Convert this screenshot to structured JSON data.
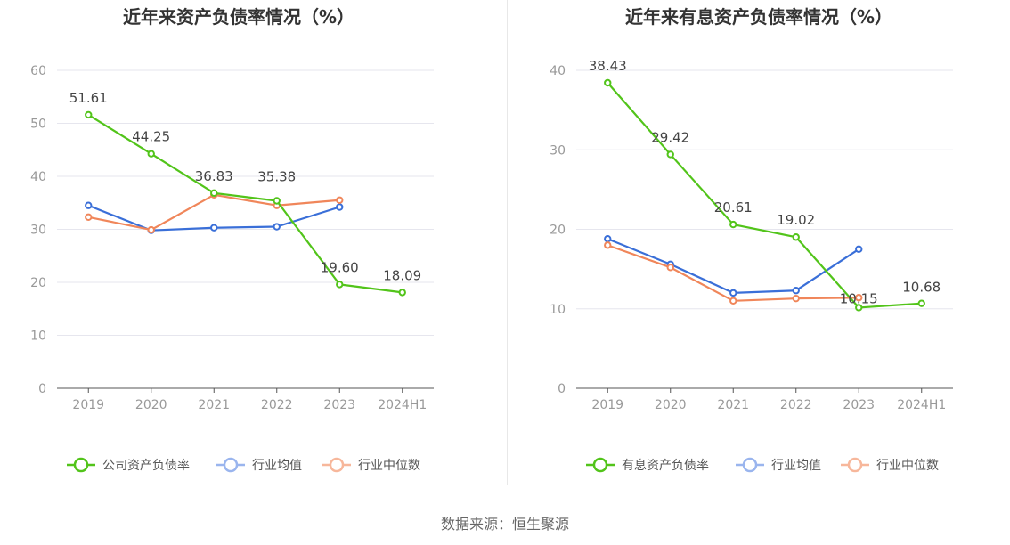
{
  "source_label": "数据来源：恒生聚源",
  "chart_data": [
    {
      "type": "line",
      "title": "近年来资产负债率情况（%）",
      "categories": [
        "2019",
        "2020",
        "2021",
        "2022",
        "2023",
        "2024H1"
      ],
      "ylim": [
        0,
        60
      ],
      "yticks": [
        0,
        10,
        20,
        30,
        40,
        50,
        60
      ],
      "grid": true,
      "legend_position": "bottom",
      "series": [
        {
          "name": "公司资产负债率",
          "color": "#52c41a",
          "values": [
            51.61,
            44.25,
            36.83,
            35.38,
            19.6,
            18.09
          ],
          "labels": [
            "51.61",
            "44.25",
            "36.83",
            "35.38",
            "19.60",
            "18.09"
          ]
        },
        {
          "name": "行业均值",
          "color": "#3a6fd8",
          "values": [
            34.5,
            29.8,
            30.3,
            30.5,
            34.2,
            null
          ]
        },
        {
          "name": "行业中位数",
          "color": "#f0865a",
          "values": [
            32.3,
            29.9,
            36.5,
            34.5,
            35.5,
            null
          ]
        }
      ]
    },
    {
      "type": "line",
      "title": "近年来有息资产负债率情况（%）",
      "categories": [
        "2019",
        "2020",
        "2021",
        "2022",
        "2023",
        "2024H1"
      ],
      "ylim": [
        0,
        40
      ],
      "yticks": [
        0,
        10,
        20,
        30,
        40
      ],
      "grid": true,
      "legend_position": "bottom",
      "series": [
        {
          "name": "有息资产负债率",
          "color": "#52c41a",
          "values": [
            38.43,
            29.42,
            20.61,
            19.02,
            10.15,
            10.68
          ],
          "labels": [
            "38.43",
            "29.42",
            "20.61",
            "19.02",
            "10.15",
            "10.68"
          ]
        },
        {
          "name": "行业均值",
          "color": "#3a6fd8",
          "values": [
            18.8,
            15.6,
            12.0,
            12.3,
            17.5,
            null
          ]
        },
        {
          "name": "行业中位数",
          "color": "#f0865a",
          "values": [
            18.0,
            15.2,
            11.0,
            11.3,
            11.4,
            null
          ]
        }
      ]
    }
  ]
}
